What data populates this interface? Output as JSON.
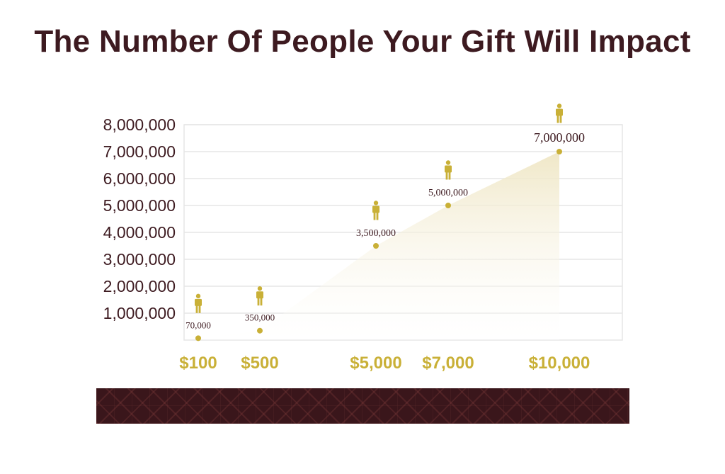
{
  "title": "The Number Of People Your Gift Will Impact",
  "colors": {
    "title": "#3d1a20",
    "gold": "#c9b037",
    "grid": "#e6e6e6",
    "banner": "#3a161b",
    "area": "#f3edd2"
  },
  "icon": "person-icon",
  "chart_data": {
    "type": "line",
    "title": "The Number Of People Your Gift Will Impact",
    "xlabel": "",
    "ylabel": "",
    "categories": [
      "$100",
      "$500",
      "$5,000",
      "$7,000",
      "$10,000"
    ],
    "values": [
      70000,
      350000,
      3500000,
      5000000,
      7000000
    ],
    "data_labels": [
      "70,000",
      "350,000",
      "3,500,000",
      "5,000,000",
      "7,000,000"
    ],
    "y_ticks": [
      1000000,
      2000000,
      3000000,
      4000000,
      5000000,
      6000000,
      7000000,
      8000000
    ],
    "y_tick_labels": [
      "1,000,000",
      "2,000,000",
      "3,000,000",
      "4,000,000",
      "5,000,000",
      "6,000,000",
      "7,000,000",
      "8,000,000"
    ],
    "ylim": [
      0,
      8000000
    ],
    "grid": true,
    "legend": "none"
  }
}
